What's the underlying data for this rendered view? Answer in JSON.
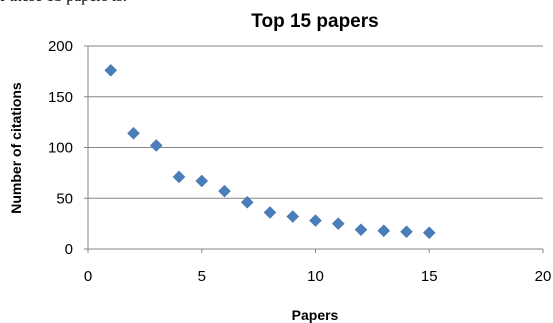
{
  "page_text": {
    "fragment": "f these 15 papers is:"
  },
  "chart_data": {
    "type": "scatter",
    "title": "Top 15 papers",
    "xlabel": "Papers",
    "ylabel": "Number of citations",
    "xlim": [
      0,
      20
    ],
    "ylim": [
      0,
      200
    ],
    "x_ticks": [
      "0",
      "5",
      "10",
      "15",
      "20"
    ],
    "y_ticks": [
      "0",
      "50",
      "100",
      "150",
      "200"
    ],
    "grid": "horizontal",
    "marker": "diamond",
    "color": "#4a7ebb",
    "series": [
      {
        "x": [
          1,
          2,
          3,
          4,
          5,
          6,
          7,
          8,
          9,
          10,
          11,
          12,
          13,
          14,
          15
        ],
        "y": [
          176,
          114,
          102,
          71,
          67,
          57,
          46,
          36,
          32,
          28,
          25,
          19,
          18,
          17,
          16
        ]
      }
    ]
  }
}
